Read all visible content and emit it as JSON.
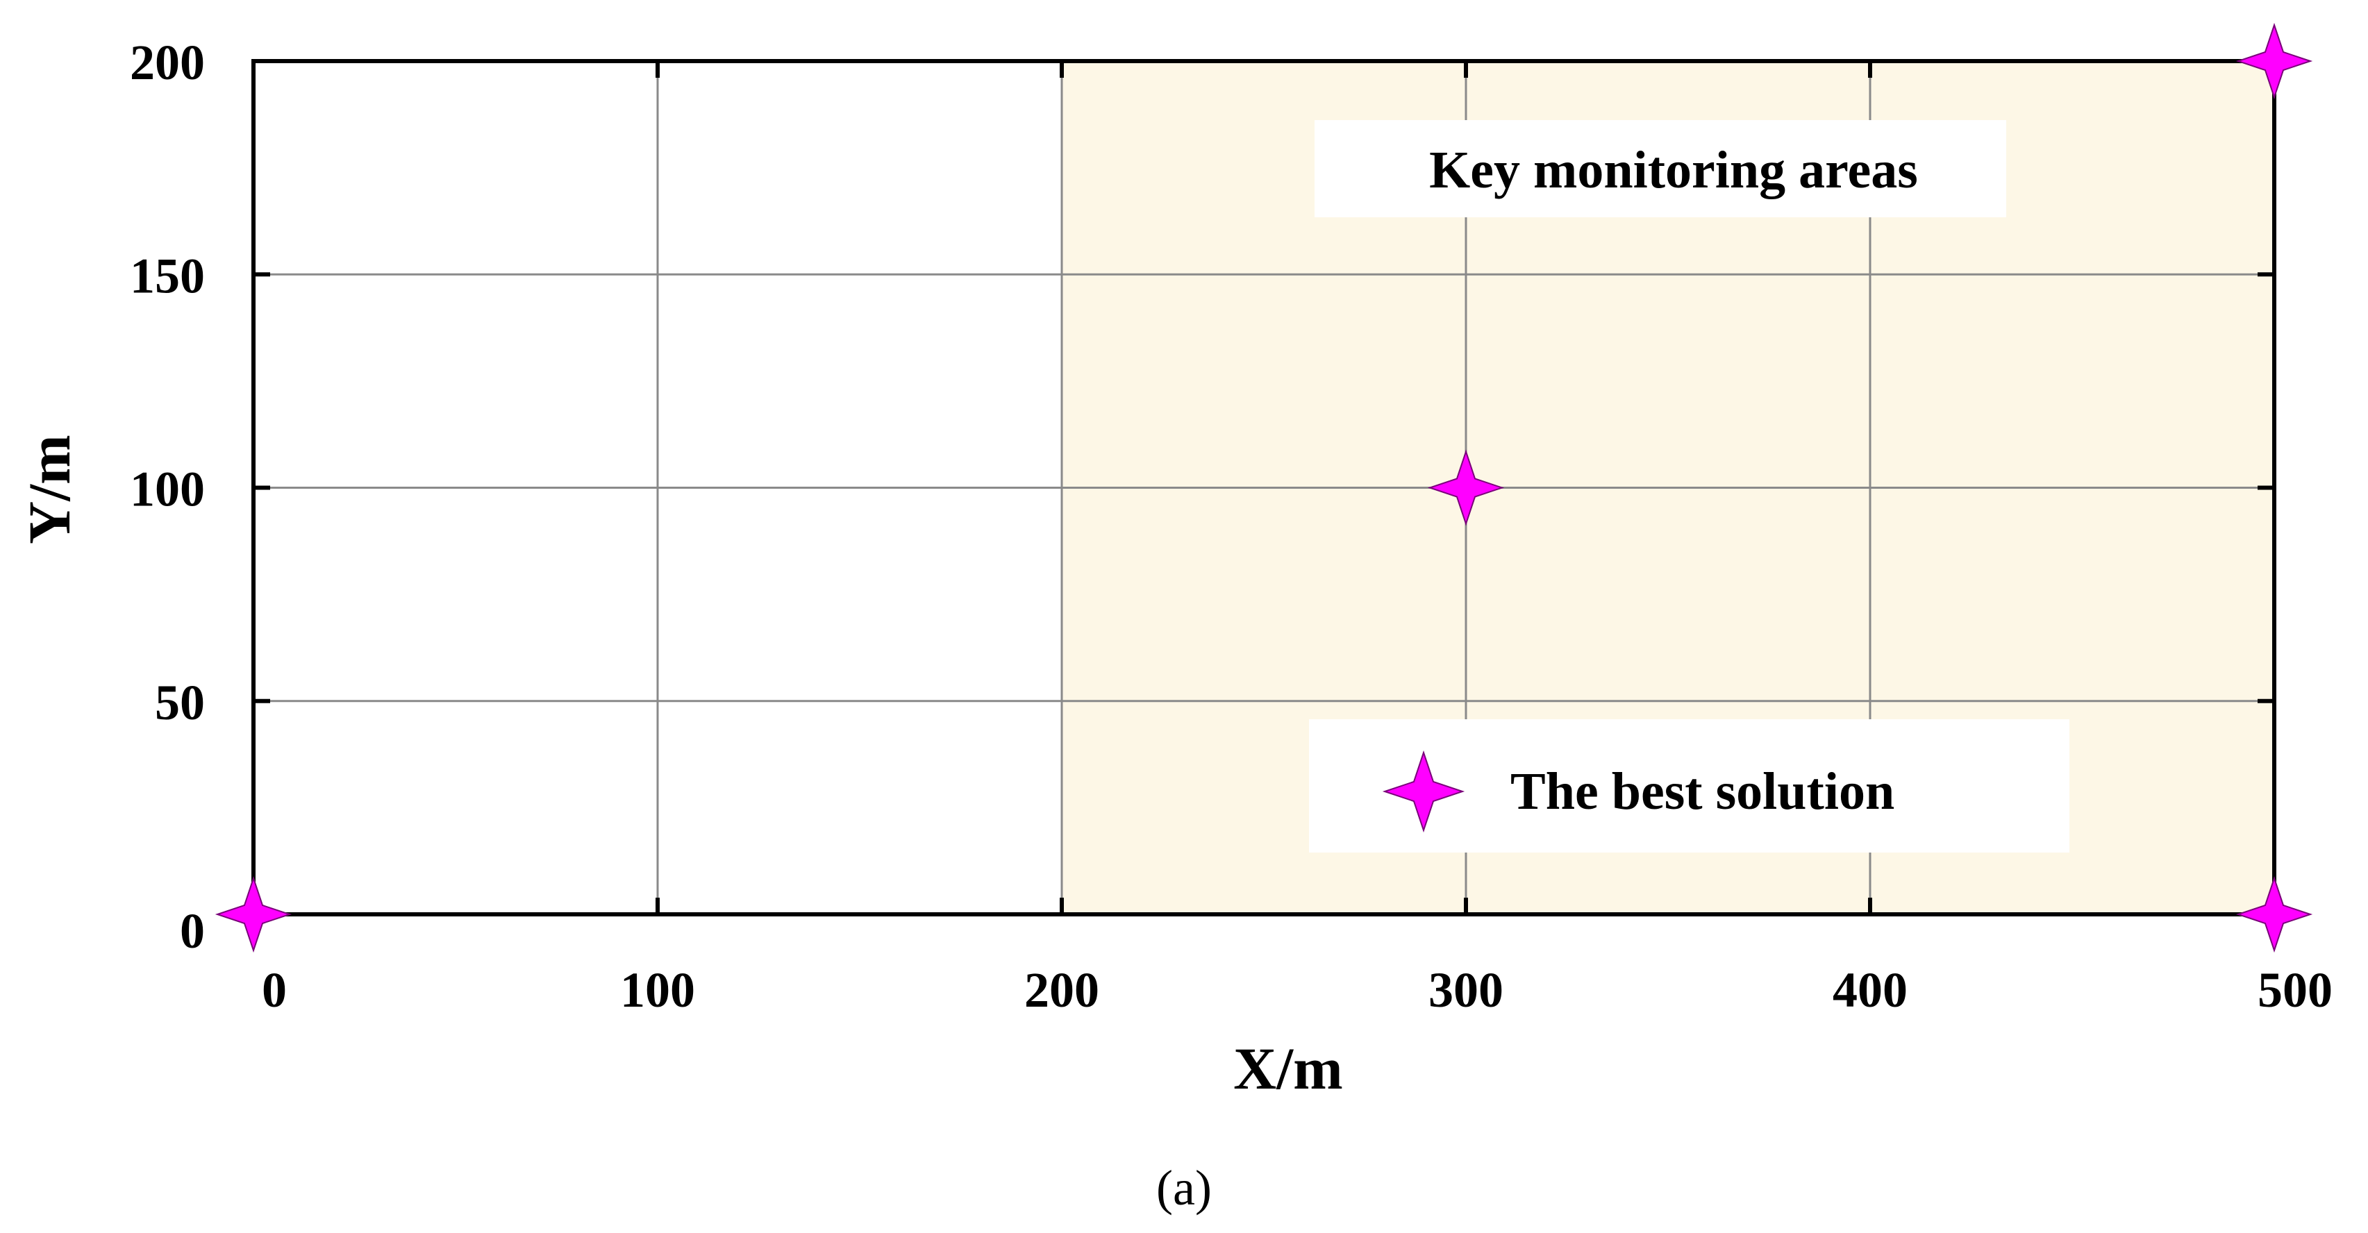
{
  "chart_data": {
    "type": "scatter",
    "xlabel": "X/m",
    "ylabel": "Y/m",
    "xlim": [
      0,
      500
    ],
    "ylim": [
      0,
      200
    ],
    "xticks": [
      0,
      100,
      200,
      300,
      400,
      500
    ],
    "yticks": [
      0,
      50,
      100,
      150,
      200
    ],
    "grid": true,
    "highlight_region": {
      "label": "Key monitoring areas",
      "x_range": [
        200,
        500
      ],
      "y_range": [
        0,
        200
      ],
      "color": "#fdf7e6"
    },
    "series": [
      {
        "name": "The best solution",
        "marker": "four-point-star",
        "color": "#ff00ff",
        "points": [
          {
            "x": 0,
            "y": 0
          },
          {
            "x": 300,
            "y": 100
          },
          {
            "x": 500,
            "y": 200
          },
          {
            "x": 500,
            "y": 0
          }
        ]
      }
    ],
    "legend_placement": "bottom-right inside plot",
    "caption": "(a)"
  }
}
